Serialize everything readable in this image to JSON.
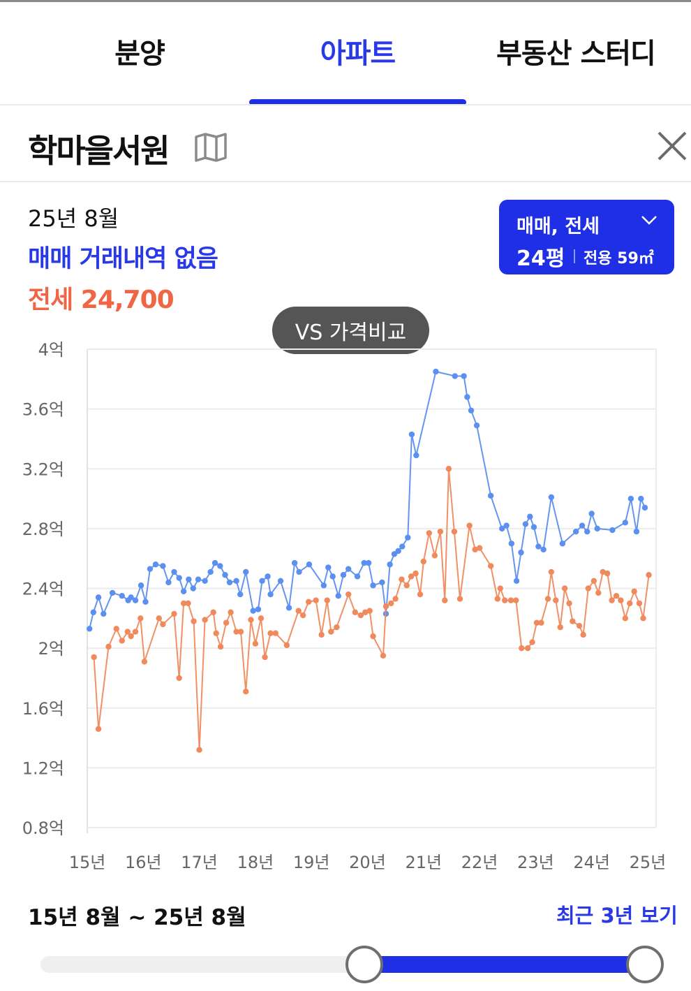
{
  "tabs": [
    {
      "label": "분양",
      "active": false
    },
    {
      "label": "아파트",
      "active": true
    },
    {
      "label": "부동산 스터디",
      "active": false
    }
  ],
  "header": {
    "complex_name": "학마을서원",
    "map_icon": "map-icon",
    "close_icon": "close-icon"
  },
  "summary": {
    "date": "25년 8월",
    "sale_text": "매매 거래내역 없음",
    "jeonse_text": "전세 24,700"
  },
  "filter": {
    "trade_types": "매매, 전세",
    "size_pyeong": "24평",
    "exclusive_area": "전용 59㎡"
  },
  "compare_button": "VS 가격비교",
  "colors": {
    "accent": "#1f2fe6",
    "sale_line": "#5b8ff0",
    "jeonse_line": "#f08a5d",
    "jeonse_text": "#f06543"
  },
  "chart_data": {
    "type": "line",
    "ylabel_unit": "억",
    "y_ticks": [
      "4억",
      "3.6억",
      "3.2억",
      "2.8억",
      "2.4억",
      "2억",
      "1.6억",
      "1.2억",
      "0.8억"
    ],
    "y_tick_values": [
      4.0,
      3.6,
      3.2,
      2.8,
      2.4,
      2.0,
      1.6,
      1.2,
      0.8
    ],
    "ylim": [
      0.8,
      4.0
    ],
    "x_ticks": [
      "15년",
      "16년",
      "17년",
      "18년",
      "19년",
      "20년",
      "21년",
      "22년",
      "23년",
      "24년",
      "25년"
    ],
    "x_tick_years": [
      2015,
      2016,
      2017,
      2018,
      2019,
      2020,
      2021,
      2022,
      2023,
      2024,
      2025
    ],
    "xlim": [
      2015.0,
      2025.15
    ],
    "grid": true,
    "series": [
      {
        "key": "sale",
        "color": "#5b8ff0",
        "points": [
          [
            2015.04,
            2.13
          ],
          [
            2015.11,
            2.24
          ],
          [
            2015.2,
            2.34
          ],
          [
            2015.29,
            2.23
          ],
          [
            2015.45,
            2.37
          ],
          [
            2015.62,
            2.35
          ],
          [
            2015.73,
            2.32
          ],
          [
            2015.78,
            2.34
          ],
          [
            2015.86,
            2.32
          ],
          [
            2015.96,
            2.42
          ],
          [
            2016.04,
            2.31
          ],
          [
            2016.12,
            2.53
          ],
          [
            2016.22,
            2.56
          ],
          [
            2016.35,
            2.55
          ],
          [
            2016.45,
            2.44
          ],
          [
            2016.55,
            2.51
          ],
          [
            2016.64,
            2.47
          ],
          [
            2016.72,
            2.38
          ],
          [
            2016.81,
            2.46
          ],
          [
            2016.89,
            2.4
          ],
          [
            2016.98,
            2.46
          ],
          [
            2017.1,
            2.45
          ],
          [
            2017.2,
            2.51
          ],
          [
            2017.28,
            2.57
          ],
          [
            2017.37,
            2.55
          ],
          [
            2017.46,
            2.49
          ],
          [
            2017.54,
            2.44
          ],
          [
            2017.66,
            2.45
          ],
          [
            2017.73,
            2.36
          ],
          [
            2017.83,
            2.51
          ],
          [
            2017.96,
            2.25
          ],
          [
            2018.05,
            2.26
          ],
          [
            2018.12,
            2.45
          ],
          [
            2018.22,
            2.48
          ],
          [
            2018.27,
            2.36
          ],
          [
            2018.45,
            2.45
          ],
          [
            2018.6,
            2.27
          ],
          [
            2018.7,
            2.57
          ],
          [
            2018.78,
            2.51
          ],
          [
            2018.96,
            2.56
          ],
          [
            2019.22,
            2.42
          ],
          [
            2019.3,
            2.54
          ],
          [
            2019.38,
            2.48
          ],
          [
            2019.48,
            2.35
          ],
          [
            2019.57,
            2.49
          ],
          [
            2019.66,
            2.53
          ],
          [
            2019.82,
            2.48
          ],
          [
            2019.94,
            2.57
          ],
          [
            2020.02,
            2.57
          ],
          [
            2020.1,
            2.42
          ],
          [
            2020.26,
            2.44
          ],
          [
            2020.33,
            2.23
          ],
          [
            2020.4,
            2.56
          ],
          [
            2020.48,
            2.63
          ],
          [
            2020.55,
            2.65
          ],
          [
            2020.62,
            2.68
          ],
          [
            2020.72,
            2.74
          ],
          [
            2020.79,
            3.43
          ],
          [
            2020.87,
            3.29
          ],
          [
            2021.22,
            3.85
          ],
          [
            2021.56,
            3.82
          ],
          [
            2021.72,
            3.82
          ],
          [
            2021.78,
            3.68
          ],
          [
            2021.85,
            3.59
          ],
          [
            2021.95,
            3.49
          ],
          [
            2022.2,
            3.02
          ],
          [
            2022.4,
            2.8
          ],
          [
            2022.48,
            2.82
          ],
          [
            2022.57,
            2.7
          ],
          [
            2022.66,
            2.45
          ],
          [
            2022.74,
            2.64
          ],
          [
            2022.82,
            2.83
          ],
          [
            2022.9,
            2.88
          ],
          [
            2022.97,
            2.81
          ],
          [
            2023.05,
            2.68
          ],
          [
            2023.14,
            2.66
          ],
          [
            2023.28,
            3.01
          ],
          [
            2023.48,
            2.7
          ],
          [
            2023.72,
            2.78
          ],
          [
            2023.83,
            2.82
          ],
          [
            2023.92,
            2.78
          ],
          [
            2024.0,
            2.9
          ],
          [
            2024.1,
            2.8
          ],
          [
            2024.37,
            2.79
          ],
          [
            2024.6,
            2.84
          ],
          [
            2024.7,
            3.0
          ],
          [
            2024.8,
            2.78
          ],
          [
            2024.88,
            3.0
          ],
          [
            2024.95,
            2.94
          ]
        ]
      },
      {
        "key": "jeonse",
        "color": "#f08a5d",
        "points": [
          [
            2015.12,
            1.94
          ],
          [
            2015.2,
            1.46
          ],
          [
            2015.38,
            2.01
          ],
          [
            2015.52,
            2.13
          ],
          [
            2015.62,
            2.05
          ],
          [
            2015.72,
            2.11
          ],
          [
            2015.78,
            2.08
          ],
          [
            2015.86,
            2.11
          ],
          [
            2015.95,
            2.2
          ],
          [
            2016.02,
            1.91
          ],
          [
            2016.28,
            2.2
          ],
          [
            2016.35,
            2.16
          ],
          [
            2016.55,
            2.23
          ],
          [
            2016.64,
            1.8
          ],
          [
            2016.72,
            2.3
          ],
          [
            2016.8,
            2.3
          ],
          [
            2016.9,
            2.18
          ],
          [
            2017.0,
            1.32
          ],
          [
            2017.1,
            2.19
          ],
          [
            2017.25,
            2.24
          ],
          [
            2017.3,
            2.1
          ],
          [
            2017.38,
            2.01
          ],
          [
            2017.48,
            2.17
          ],
          [
            2017.56,
            2.24
          ],
          [
            2017.66,
            2.11
          ],
          [
            2017.74,
            2.11
          ],
          [
            2017.83,
            1.71
          ],
          [
            2017.92,
            2.19
          ],
          [
            2018.0,
            2.03
          ],
          [
            2018.1,
            2.2
          ],
          [
            2018.17,
            1.94
          ],
          [
            2018.27,
            2.1
          ],
          [
            2018.36,
            2.1
          ],
          [
            2018.56,
            2.02
          ],
          [
            2018.77,
            2.25
          ],
          [
            2018.85,
            2.22
          ],
          [
            2018.95,
            2.31
          ],
          [
            2019.08,
            2.32
          ],
          [
            2019.18,
            2.09
          ],
          [
            2019.28,
            2.32
          ],
          [
            2019.35,
            2.11
          ],
          [
            2019.45,
            2.14
          ],
          [
            2019.66,
            2.36
          ],
          [
            2019.78,
            2.24
          ],
          [
            2019.88,
            2.22
          ],
          [
            2019.96,
            2.24
          ],
          [
            2020.04,
            2.25
          ],
          [
            2020.1,
            2.08
          ],
          [
            2020.28,
            1.95
          ],
          [
            2020.33,
            2.28
          ],
          [
            2020.42,
            2.3
          ],
          [
            2020.5,
            2.33
          ],
          [
            2020.61,
            2.46
          ],
          [
            2020.7,
            2.42
          ],
          [
            2020.78,
            2.48
          ],
          [
            2020.86,
            2.5
          ],
          [
            2020.94,
            2.36
          ],
          [
            2021.0,
            2.58
          ],
          [
            2021.1,
            2.77
          ],
          [
            2021.2,
            2.62
          ],
          [
            2021.3,
            2.78
          ],
          [
            2021.38,
            2.32
          ],
          [
            2021.45,
            3.2
          ],
          [
            2021.55,
            2.78
          ],
          [
            2021.65,
            2.33
          ],
          [
            2021.82,
            2.82
          ],
          [
            2021.92,
            2.66
          ],
          [
            2022.0,
            2.67
          ],
          [
            2022.2,
            2.55
          ],
          [
            2022.32,
            2.33
          ],
          [
            2022.37,
            2.4
          ],
          [
            2022.45,
            2.32
          ],
          [
            2022.56,
            2.32
          ],
          [
            2022.65,
            2.32
          ],
          [
            2022.75,
            2.0
          ],
          [
            2022.86,
            2.0
          ],
          [
            2022.94,
            2.04
          ],
          [
            2023.02,
            2.17
          ],
          [
            2023.1,
            2.17
          ],
          [
            2023.22,
            2.33
          ],
          [
            2023.28,
            2.51
          ],
          [
            2023.36,
            2.32
          ],
          [
            2023.44,
            2.14
          ],
          [
            2023.52,
            2.4
          ],
          [
            2023.6,
            2.3
          ],
          [
            2023.66,
            2.18
          ],
          [
            2023.78,
            2.15
          ],
          [
            2023.85,
            2.09
          ],
          [
            2023.94,
            2.4
          ],
          [
            2024.04,
            2.45
          ],
          [
            2024.12,
            2.37
          ],
          [
            2024.2,
            2.51
          ],
          [
            2024.28,
            2.5
          ],
          [
            2024.36,
            2.32
          ],
          [
            2024.44,
            2.35
          ],
          [
            2024.52,
            2.32
          ],
          [
            2024.6,
            2.2
          ],
          [
            2024.68,
            2.3
          ],
          [
            2024.76,
            2.38
          ],
          [
            2024.85,
            2.3
          ],
          [
            2024.92,
            2.2
          ],
          [
            2025.02,
            2.49
          ]
        ]
      }
    ]
  },
  "period": {
    "range_label": "15년 8월 ~ 25년 8월",
    "recent_link": "최근 3년 보기"
  },
  "slider": {
    "start_fraction": 0.5,
    "end_fraction": 1.0
  }
}
